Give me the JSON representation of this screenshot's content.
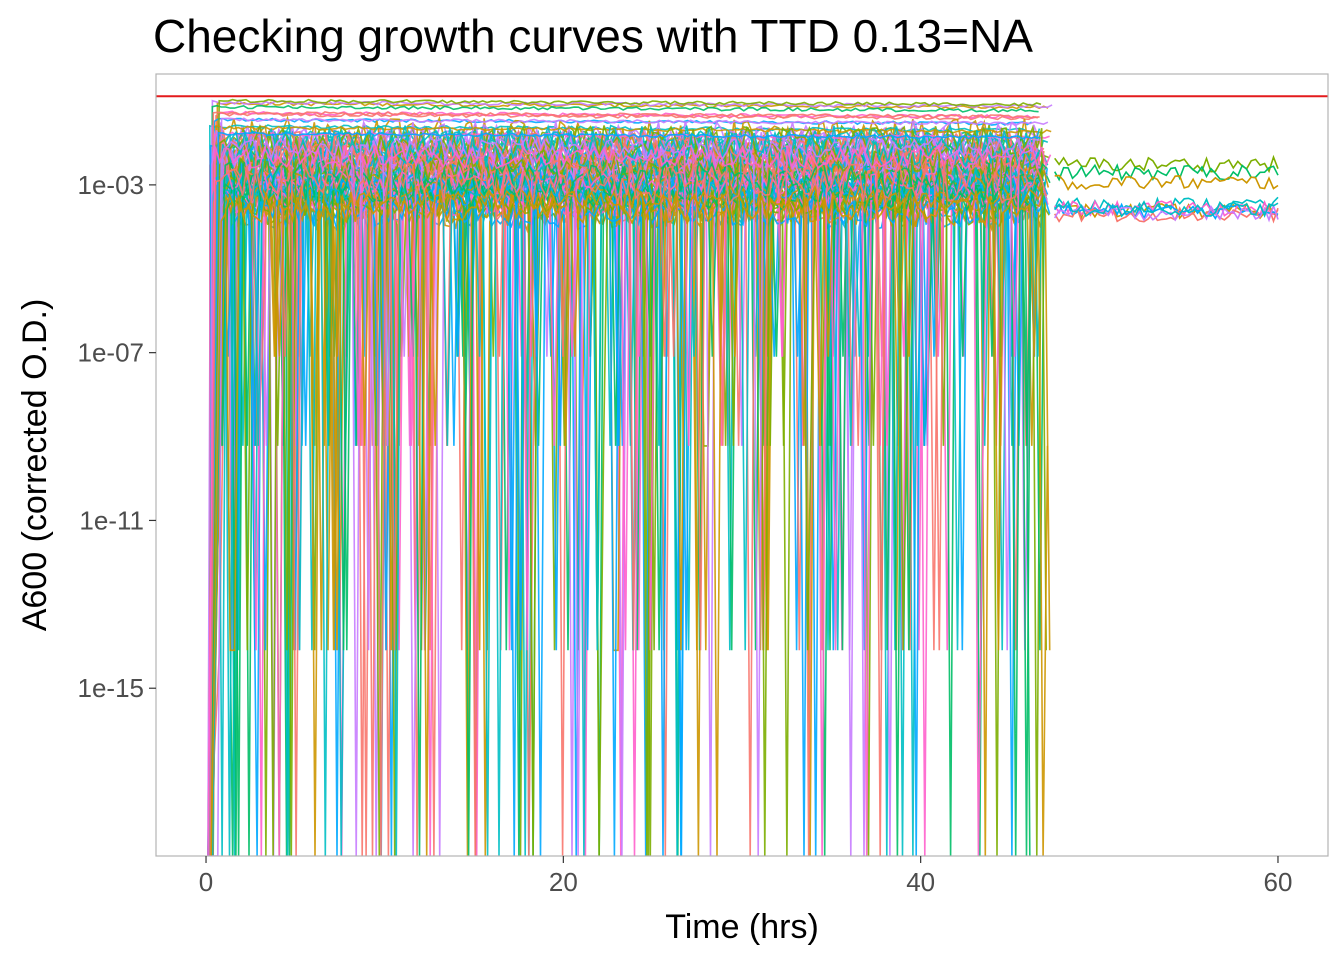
{
  "chart_data": {
    "type": "line",
    "title": "Checking growth curves with TTD 0.13=NA",
    "xlabel": "Time (hrs)",
    "ylabel": "A600 (corrected O.D.)",
    "x_scale": "linear",
    "y_scale": "log10",
    "xlim": [
      -2.8,
      62.8
    ],
    "ylim": [
      1e-19,
      0.44
    ],
    "x_ticks": [
      0,
      20,
      40,
      60
    ],
    "x_tick_labels": [
      "0",
      "20",
      "40",
      "60"
    ],
    "y_ticks": [
      0.001,
      1e-07,
      1e-11,
      1e-15
    ],
    "y_tick_labels": [
      "1e-03",
      "1e-07",
      "1e-11",
      "1e-15"
    ],
    "grid": false,
    "legend": "none",
    "threshold": {
      "y": 0.13,
      "color": "#e41a1c"
    },
    "palette": [
      "#F8766D",
      "#CD9600",
      "#7CAE00",
      "#00BE67",
      "#00BFC4",
      "#00A9FF",
      "#C77CFF",
      "#FF61CC"
    ],
    "bundle": {
      "curve_count_approx": 90,
      "time_range_main": [
        0,
        47.5
      ],
      "time_range_extended": [
        47.5,
        60
      ],
      "extended_curve_count_approx": 10,
      "sample_interval_hrs": 0.25,
      "baseline_band": [
        0.0001,
        0.02
      ],
      "high_curves_level": [
        0.015,
        0.12
      ],
      "dropout_floor_values": [
        1e-19,
        8e-15,
        6e-10,
        8e-08
      ]
    }
  }
}
